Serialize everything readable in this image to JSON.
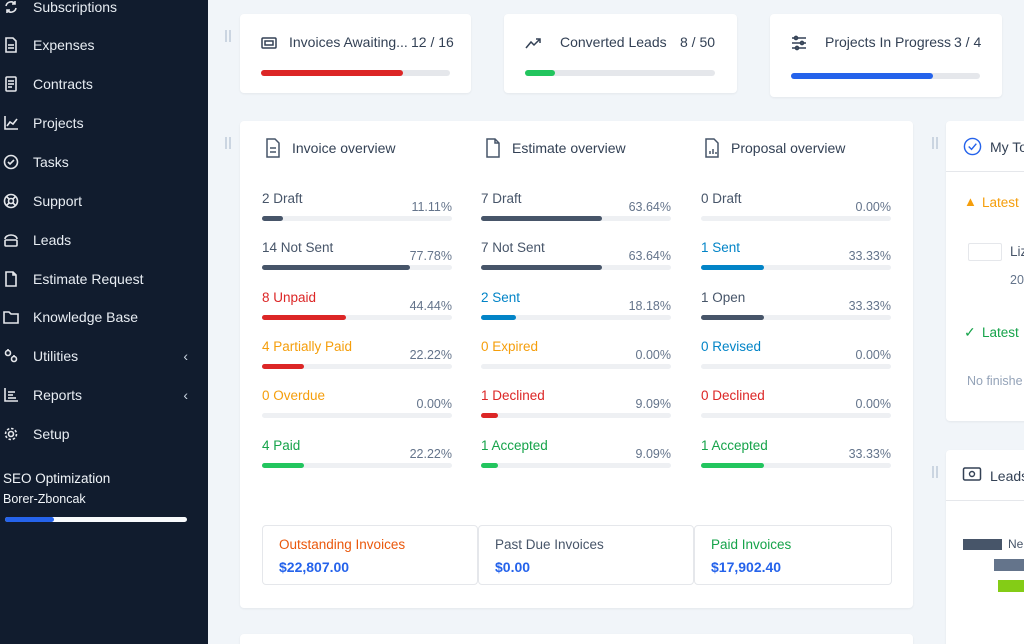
{
  "sidebar": {
    "items": [
      {
        "label": "Subscriptions",
        "icon": "refresh-icon"
      },
      {
        "label": "Expenses",
        "icon": "document-icon"
      },
      {
        "label": "Contracts",
        "icon": "contract-icon"
      },
      {
        "label": "Projects",
        "icon": "chart-icon"
      },
      {
        "label": "Tasks",
        "icon": "check-circle-icon"
      },
      {
        "label": "Support",
        "icon": "lifebuoy-icon"
      },
      {
        "label": "Leads",
        "icon": "leads-icon"
      },
      {
        "label": "Estimate Request",
        "icon": "file-icon"
      },
      {
        "label": "Knowledge Base",
        "icon": "folder-icon"
      },
      {
        "label": "Utilities",
        "icon": "gears-icon",
        "chevron": "‹"
      },
      {
        "label": "Reports",
        "icon": "bar-chart-icon",
        "chevron": "‹"
      },
      {
        "label": "Setup",
        "icon": "gear-icon"
      }
    ],
    "project": {
      "name": "SEO Optimization",
      "client": "Borer-Zboncak",
      "progress": 0.27
    }
  },
  "stats": [
    {
      "label": "Invoices Awaiting...",
      "value": "12 / 16",
      "progress": 0.75,
      "color": "#dc2626",
      "icon": "invoice-icon"
    },
    {
      "label": "Converted Leads",
      "value": "8 / 50",
      "progress": 0.16,
      "color": "#22c55e",
      "icon": "trend-up-icon"
    },
    {
      "label": "Projects In Progress",
      "value": "3 / 4",
      "progress": 0.75,
      "color": "#2563eb",
      "icon": "sliders-icon"
    }
  ],
  "overview": {
    "invoice": {
      "title": "Invoice overview",
      "rows": [
        {
          "label": "2 Draft",
          "pct": "11.11%",
          "value": 11.11,
          "color": "#475569",
          "text_color": "#475569"
        },
        {
          "label": "14 Not Sent",
          "pct": "77.78%",
          "value": 77.78,
          "color": "#475569",
          "text_color": "#475569"
        },
        {
          "label": "8 Unpaid",
          "pct": "44.44%",
          "value": 44.44,
          "color": "#dc2626",
          "text_color": "#dc2626"
        },
        {
          "label": "4 Partially Paid",
          "pct": "22.22%",
          "value": 22.22,
          "color": "#dc2626",
          "text_color": "#f59e0b"
        },
        {
          "label": "0 Overdue",
          "pct": "0.00%",
          "value": 0,
          "color": "#f59e0b",
          "text_color": "#f59e0b"
        },
        {
          "label": "4 Paid",
          "pct": "22.22%",
          "value": 22.22,
          "color": "#22c55e",
          "text_color": "#16a34a"
        }
      ]
    },
    "estimate": {
      "title": "Estimate overview",
      "rows": [
        {
          "label": "7 Draft",
          "pct": "63.64%",
          "value": 63.64,
          "color": "#475569",
          "text_color": "#475569"
        },
        {
          "label": "7 Not Sent",
          "pct": "63.64%",
          "value": 63.64,
          "color": "#475569",
          "text_color": "#475569"
        },
        {
          "label": "2 Sent",
          "pct": "18.18%",
          "value": 18.18,
          "color": "#0284c7",
          "text_color": "#0284c7"
        },
        {
          "label": "0 Expired",
          "pct": "0.00%",
          "value": 0,
          "color": "#f59e0b",
          "text_color": "#f59e0b"
        },
        {
          "label": "1 Declined",
          "pct": "9.09%",
          "value": 9.09,
          "color": "#dc2626",
          "text_color": "#dc2626"
        },
        {
          "label": "1 Accepted",
          "pct": "9.09%",
          "value": 9.09,
          "color": "#22c55e",
          "text_color": "#16a34a"
        }
      ]
    },
    "proposal": {
      "title": "Proposal overview",
      "rows": [
        {
          "label": "0 Draft",
          "pct": "0.00%",
          "value": 0,
          "color": "#475569",
          "text_color": "#475569"
        },
        {
          "label": "1 Sent",
          "pct": "33.33%",
          "value": 33.33,
          "color": "#0284c7",
          "text_color": "#0284c7"
        },
        {
          "label": "1 Open",
          "pct": "33.33%",
          "value": 33.33,
          "color": "#475569",
          "text_color": "#475569"
        },
        {
          "label": "0 Revised",
          "pct": "0.00%",
          "value": 0,
          "color": "#0284c7",
          "text_color": "#0284c7"
        },
        {
          "label": "0 Declined",
          "pct": "0.00%",
          "value": 0,
          "color": "#dc2626",
          "text_color": "#dc2626"
        },
        {
          "label": "1 Accepted",
          "pct": "33.33%",
          "value": 33.33,
          "color": "#22c55e",
          "text_color": "#16a34a"
        }
      ]
    }
  },
  "summary": [
    {
      "label": "Outstanding Invoices",
      "value": "$22,807.00",
      "color": "#ea580c"
    },
    {
      "label": "Past Due Invoices",
      "value": "$0.00",
      "color": "#475569"
    },
    {
      "label": "Paid Invoices",
      "value": "$17,902.40",
      "color": "#16a34a"
    }
  ],
  "right_panel": {
    "todo_title": "My To",
    "latest_warn": "Latest",
    "item_name": "Liz",
    "item_sub": "20",
    "latest_done": "Latest",
    "no_finished": "No finishe",
    "leads_title": "Leads",
    "chart_label": "Ne",
    "legend_colors": [
      "#475569",
      "#64748b",
      "#84cc16"
    ]
  }
}
